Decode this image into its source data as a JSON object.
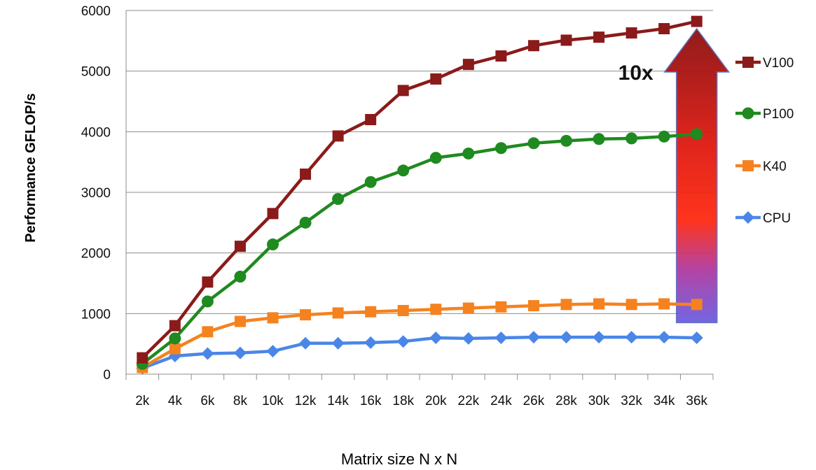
{
  "chart_data": {
    "type": "line",
    "xlabel": "Matrix size N x N",
    "ylabel": "Performance GFLOP/s",
    "categories": [
      "2k",
      "4k",
      "6k",
      "8k",
      "10k",
      "12k",
      "14k",
      "16k",
      "18k",
      "20k",
      "22k",
      "24k",
      "26k",
      "28k",
      "30k",
      "32k",
      "34k",
      "36k"
    ],
    "ylim": [
      0,
      6000
    ],
    "yticks": [
      0,
      1000,
      2000,
      3000,
      4000,
      5000,
      6000
    ],
    "grid": true,
    "legend_position": "right",
    "series": [
      {
        "name": "V100",
        "color": "#8b1a1a",
        "marker": "square",
        "values": [
          270,
          800,
          1520,
          2110,
          2650,
          3300,
          3930,
          4200,
          4680,
          4870,
          5110,
          5250,
          5420,
          5510,
          5560,
          5630,
          5700,
          5820
        ]
      },
      {
        "name": "P100",
        "color": "#1f8a1f",
        "marker": "circle",
        "values": [
          170,
          590,
          1200,
          1610,
          2140,
          2500,
          2890,
          3170,
          3360,
          3570,
          3640,
          3730,
          3810,
          3850,
          3880,
          3890,
          3920,
          3960
        ]
      },
      {
        "name": "K40",
        "color": "#f5821f",
        "marker": "square",
        "values": [
          110,
          420,
          700,
          870,
          930,
          980,
          1010,
          1030,
          1050,
          1070,
          1090,
          1110,
          1130,
          1150,
          1160,
          1150,
          1160,
          1150
        ]
      },
      {
        "name": "CPU",
        "color": "#4a86e8",
        "marker": "diamond",
        "values": [
          100,
          300,
          340,
          350,
          380,
          510,
          510,
          520,
          540,
          600,
          590,
          600,
          610,
          610,
          610,
          610,
          610,
          600
        ]
      }
    ],
    "annotations": [
      {
        "text": "10x",
        "type": "gradient-arrow",
        "from_value": 850,
        "to_value": 5700,
        "at_category": "36k"
      }
    ]
  }
}
